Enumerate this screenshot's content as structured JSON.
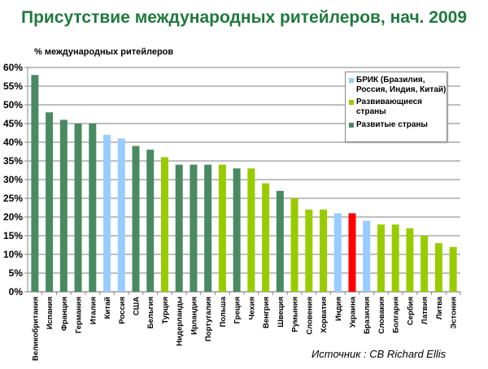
{
  "chart_data": {
    "type": "bar",
    "title": "Присутствие международных ритейлеров, нач. 2009",
    "ylabel": "% международных ритейлеров",
    "xlabel": "",
    "ylim": [
      0,
      60
    ],
    "yticks": [
      "0%",
      "5%",
      "10%",
      "15%",
      "20%",
      "25%",
      "30%",
      "35%",
      "40%",
      "45%",
      "50%",
      "55%",
      "60%"
    ],
    "grid": true,
    "legend_position": "top-right",
    "categories": [
      "Великобритания",
      "Испания",
      "Франция",
      "Германия",
      "Италия",
      "Китай",
      "Россия",
      "США",
      "Бельгия",
      "Турция",
      "Нидерланды",
      "Ирландия",
      "Португалия",
      "Польша",
      "Греция",
      "Чехия",
      "Венгрия",
      "Швеция",
      "Румыния",
      "Словения",
      "Хорватия",
      "Индия",
      "Украина",
      "Бразилия",
      "Словакия",
      "Болгария",
      "Сербия",
      "Латвия",
      "Литва",
      "Эстония"
    ],
    "values": [
      58,
      48,
      46,
      45,
      45,
      42,
      41,
      39,
      38,
      36,
      34,
      34,
      34,
      34,
      33,
      33,
      29,
      27,
      25,
      22,
      22,
      21,
      21,
      19,
      18,
      18,
      17,
      15,
      13,
      12
    ],
    "groups": [
      "dev",
      "dev",
      "dev",
      "dev",
      "dev",
      "bric",
      "bric",
      "dev",
      "dev",
      "emg",
      "dev",
      "dev",
      "dev",
      "emg",
      "dev",
      "emg",
      "emg",
      "dev",
      "emg",
      "emg",
      "emg",
      "bric",
      "highlight",
      "bric",
      "emg",
      "emg",
      "emg",
      "emg",
      "emg",
      "emg"
    ],
    "legend": [
      {
        "key": "bric",
        "label": "БРИК (Бразилия, Россия, Индия, Китай)"
      },
      {
        "key": "emg",
        "label": "Развивающиеся страны"
      },
      {
        "key": "dev",
        "label": "Развитые страны"
      }
    ],
    "colors": {
      "dev": "#4a8a62",
      "bric": "#99ccff",
      "emg": "#99cc00",
      "highlight": "#ff0000"
    },
    "source": "Источник : CB Richard Ellis"
  }
}
